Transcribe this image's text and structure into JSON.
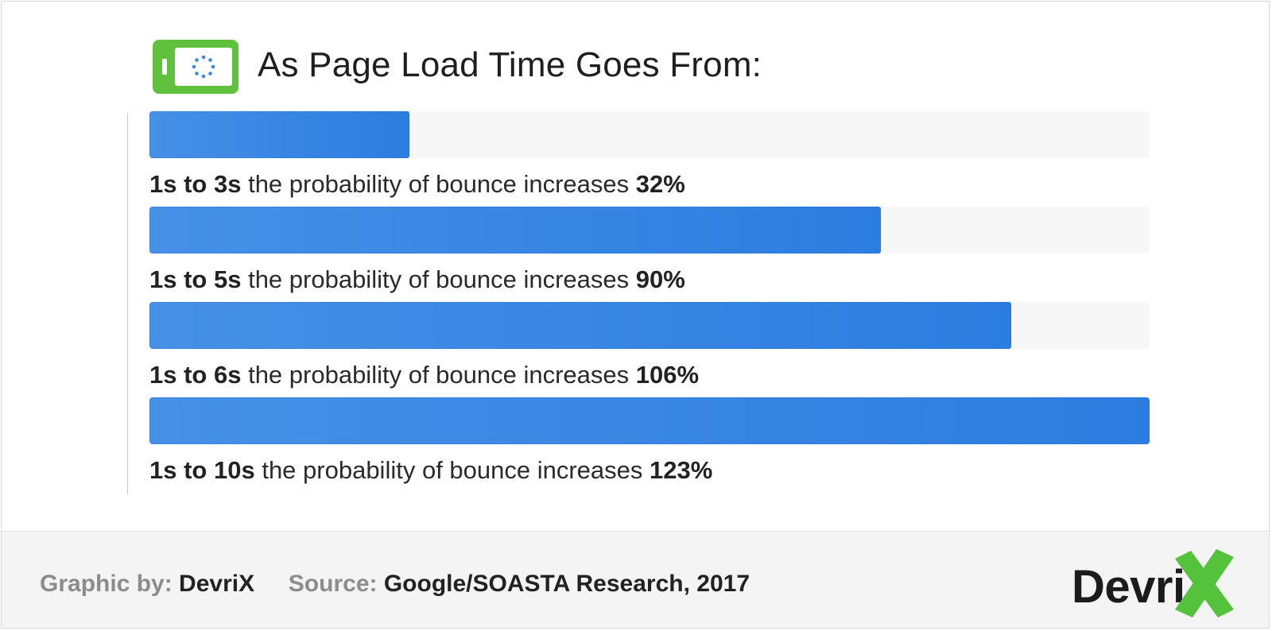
{
  "title": "As Page Load Time Goes From:",
  "colors": {
    "bar": "#2f80e3",
    "track": "#f7f7f7",
    "icon_green": "#5fc13e",
    "logo_green": "#55c23b",
    "icon_dots": "#3a86e0"
  },
  "icons": {
    "header": "page-loading-icon",
    "logo_mark": "x-mark-icon"
  },
  "chart_data": {
    "type": "bar",
    "orientation": "horizontal",
    "categories": [
      "1s to 3s",
      "1s to 5s",
      "1s to 6s",
      "1s to 10s"
    ],
    "values": [
      32,
      90,
      106,
      123
    ],
    "unit": "%",
    "xlim": [
      0,
      123
    ],
    "grid": false,
    "bars": [
      {
        "range": "1s to 3s",
        "text": "the probability of bounce increases",
        "value_label": "32%"
      },
      {
        "range": "1s to 5s",
        "text": "the probability of bounce increases",
        "value_label": "90%"
      },
      {
        "range": "1s to 6s",
        "text": "the probability of bounce increases",
        "value_label": "106%"
      },
      {
        "range": "1s to 10s",
        "text": "the probability of bounce increases",
        "value_label": "123%"
      }
    ]
  },
  "footer": {
    "graphic_by_label": "Graphic by:",
    "graphic_by_value": "DevriX",
    "source_label": "Source:",
    "source_value": "Google/SOASTA Research, 2017"
  },
  "logo": {
    "text": "Devri"
  }
}
